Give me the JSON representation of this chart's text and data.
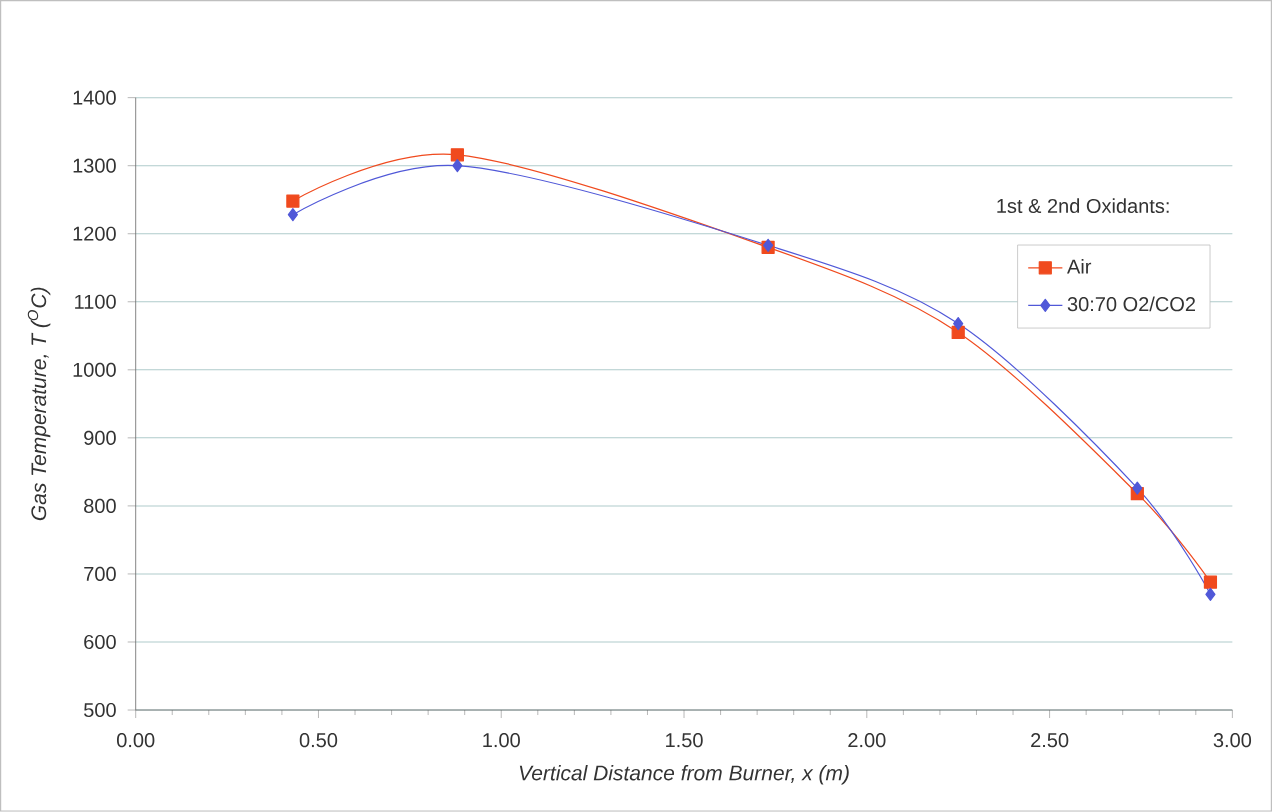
{
  "chart_data": {
    "type": "line",
    "xlabel": "Vertical Distance from Burner, x (m)",
    "ylabel": "Gas Temperature, T ($^{O}$C)",
    "legend_title": "1st & 2nd Oxidants:",
    "xlim": [
      0,
      3
    ],
    "xticks": [
      {
        "value": 0,
        "label": "0.00"
      },
      {
        "value": 0.5,
        "label": "0.50"
      },
      {
        "value": 1,
        "label": "1.00"
      },
      {
        "value": 1.5,
        "label": "1.50"
      },
      {
        "value": 2,
        "label": "2.00"
      },
      {
        "value": 2.5,
        "label": "2.50"
      },
      {
        "value": 3,
        "label": "3.00"
      }
    ],
    "ylim": [
      500,
      1400
    ],
    "yticks": [
      500,
      600,
      700,
      800,
      900,
      1000,
      1100,
      1200,
      1300,
      1400
    ],
    "grid": "y",
    "legend": "right",
    "series": [
      {
        "name": "Air",
        "color": "#f04a1e",
        "marker": "square",
        "x": [
          0.43,
          0.88,
          1.73,
          2.25,
          2.74,
          2.94
        ],
        "values": [
          1248,
          1316,
          1180,
          1055,
          818,
          688
        ]
      },
      {
        "name": "30:70 O2/CO2",
        "color": "#5058d8",
        "marker": "diamond",
        "x": [
          0.43,
          0.88,
          1.73,
          2.25,
          2.74,
          2.94
        ],
        "values": [
          1228,
          1300,
          1183,
          1068,
          826,
          670
        ]
      }
    ]
  }
}
